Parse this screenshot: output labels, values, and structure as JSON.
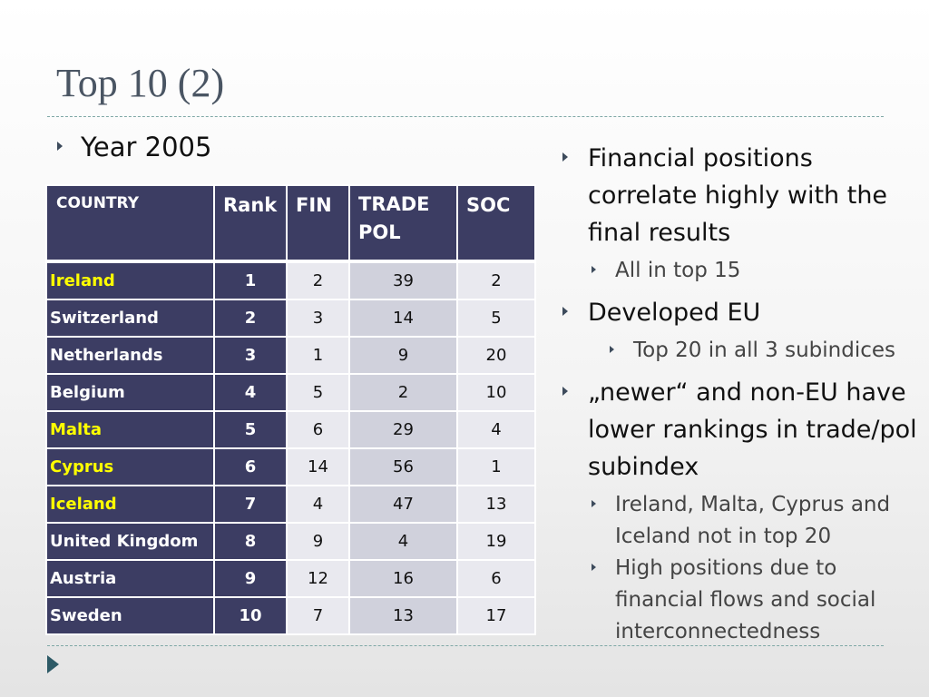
{
  "slide": {
    "title": "Top 10 (2)",
    "left_heading": "Year 2005"
  },
  "table": {
    "headers": [
      "COUNTRY",
      "Rank",
      "FIN",
      "TRADE POL",
      "SOC"
    ],
    "rows": [
      {
        "country": "Ireland",
        "rank": "1",
        "fin": "2",
        "trade_pol": "39",
        "soc": "2",
        "highlight": true
      },
      {
        "country": "Switzerland",
        "rank": "2",
        "fin": "3",
        "trade_pol": "14",
        "soc": "5",
        "highlight": false
      },
      {
        "country": "Netherlands",
        "rank": "3",
        "fin": "1",
        "trade_pol": "9",
        "soc": "20",
        "highlight": false
      },
      {
        "country": "Belgium",
        "rank": "4",
        "fin": "5",
        "trade_pol": "2",
        "soc": "10",
        "highlight": false
      },
      {
        "country": "Malta",
        "rank": "5",
        "fin": "6",
        "trade_pol": "29",
        "soc": "4",
        "highlight": true
      },
      {
        "country": "Cyprus",
        "rank": "6",
        "fin": "14",
        "trade_pol": "56",
        "soc": "1",
        "highlight": true
      },
      {
        "country": "Iceland",
        "rank": "7",
        "fin": "4",
        "trade_pol": "47",
        "soc": "13",
        "highlight": true
      },
      {
        "country": "United Kingdom",
        "rank": "8",
        "fin": "9",
        "trade_pol": "4",
        "soc": "19",
        "highlight": false
      },
      {
        "country": "Austria",
        "rank": "9",
        "fin": "12",
        "trade_pol": "16",
        "soc": "6",
        "highlight": false
      },
      {
        "country": "Sweden",
        "rank": "10",
        "fin": "7",
        "trade_pol": "13",
        "soc": "17",
        "highlight": false
      }
    ]
  },
  "right_bullets": [
    {
      "text": "Financial positions correlate highly with the final results",
      "subs": [
        "All in top 15"
      ],
      "deep": false
    },
    {
      "text": "Developed EU",
      "subs": [
        "Top 20 in all 3 subindices"
      ],
      "deep": true
    },
    {
      "text": "„newer“ and non-EU have lower rankings in trade/pol subindex",
      "subs": [
        "Ireland, Malta, Cyprus and Iceland not in top 20",
        "High positions due to financial flows and social interconnectedness"
      ],
      "deep": false
    }
  ],
  "icons": {
    "bullet": "triangle-right-icon",
    "nav": "next-slide-arrow-icon"
  },
  "colors": {
    "table_header": "#3c3d63",
    "highlight_text": "#ffff00",
    "cell_light": "#e9e9ef",
    "cell_dark": "#d0d1dc",
    "title": "#4a5563",
    "rule": "#7fa8a6"
  }
}
